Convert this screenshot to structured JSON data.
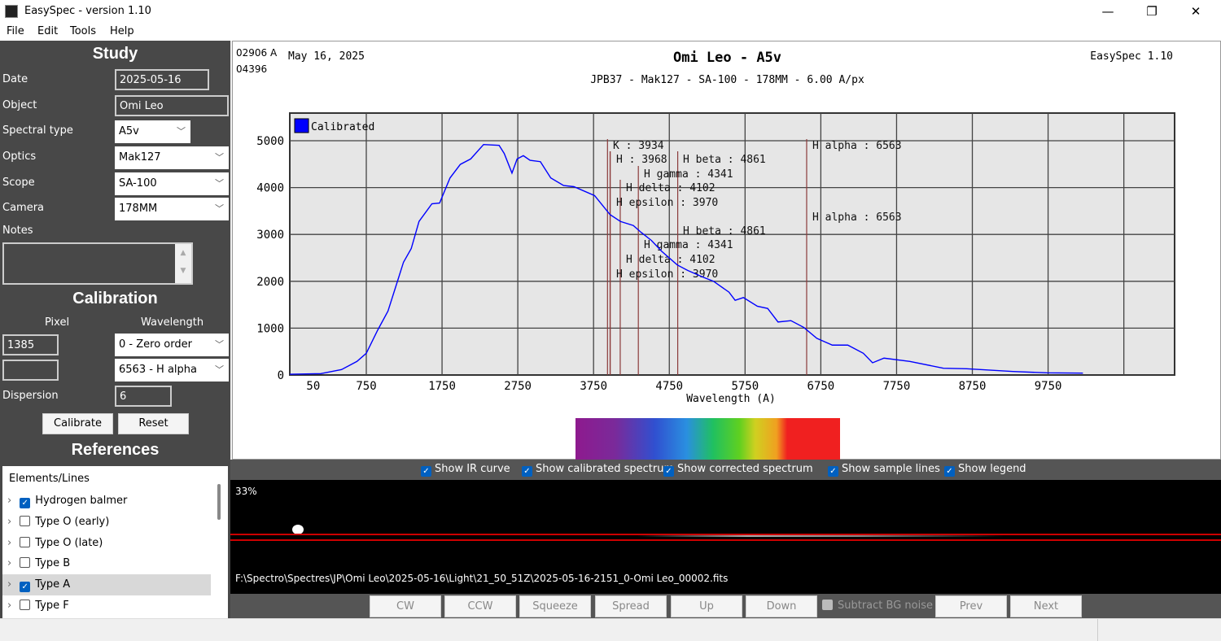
{
  "window": {
    "title": "EasySpec - version 1.10",
    "minimize": "—",
    "maximize": "❐",
    "close": "✕"
  },
  "menu": [
    "File",
    "Edit",
    "Tools",
    "Help"
  ],
  "study": {
    "title": "Study",
    "date_label": "Date",
    "date": "2025-05-16",
    "object_label": "Object",
    "object": "Omi Leo",
    "spectral_type_label": "Spectral type",
    "spectral_type": "A5v",
    "optics_label": "Optics",
    "optics": "Mak127",
    "scope_label": "Scope",
    "scope": "SA-100",
    "camera_label": "Camera",
    "camera": "178MM",
    "notes_label": "Notes",
    "notes": ""
  },
  "calibration": {
    "title": "Calibration",
    "pixel_label": "Pixel",
    "wavelength_label": "Wavelength",
    "pixel1": "1385",
    "wavelength1": "0 - Zero order",
    "pixel2": "",
    "wavelength2": "6563 - H alpha",
    "dispersion_label": "Dispersion",
    "dispersion": "6",
    "calibrate": "Calibrate",
    "reset": "Reset"
  },
  "references": {
    "title": "References",
    "header": "Elements/Lines",
    "items": [
      {
        "label": "Hydrogen balmer",
        "checked": true
      },
      {
        "label": "Type O (early)",
        "checked": false
      },
      {
        "label": "Type O (late)",
        "checked": false
      },
      {
        "label": "Type B",
        "checked": false
      },
      {
        "label": "Type A",
        "checked": true,
        "selected": true
      },
      {
        "label": "Type F",
        "checked": false
      }
    ]
  },
  "chart_header": {
    "cursor_wavelength": "02906 A",
    "cursor_value": "04396",
    "date": "May 16, 2025",
    "title": "Omi Leo - A5v",
    "subtitle": "JPB37 - Mak127 - SA-100 - 178MM - 6.00 A/px",
    "app": "EasySpec 1.10"
  },
  "chart_data": {
    "type": "line",
    "xlabel": "Wavelength (A)",
    "ylabel": "",
    "xlim": [
      -260,
      11420
    ],
    "ylim": [
      0,
      5590
    ],
    "xticks": [
      50,
      750,
      1750,
      2750,
      3750,
      4750,
      5750,
      6750,
      7750,
      8750,
      9750
    ],
    "xgrid": [
      750,
      1750,
      2750,
      3750,
      4750,
      5750,
      6750,
      7750,
      8750,
      9750,
      10750
    ],
    "yticks": [
      0,
      1000,
      2000,
      3000,
      4000,
      5000
    ],
    "grid": true,
    "legend_position": "top-left",
    "series": [
      {
        "name": "Calibrated",
        "color": "#0000ff",
        "x": [
          -259,
          150,
          423,
          627,
          750,
          900,
          1036,
          1173,
          1241,
          1343,
          1446,
          1616,
          1718,
          1855,
          1991,
          2128,
          2298,
          2503,
          2571,
          2673,
          2741,
          2823,
          2912,
          3048,
          3185,
          3355,
          3491,
          3764,
          3968,
          4105,
          4275,
          4377,
          4514,
          4650,
          4855,
          4991,
          5196,
          5332,
          5537,
          5619,
          5728,
          5912,
          6048,
          6185,
          6355,
          6526,
          6697,
          6901,
          7106,
          7311,
          7433,
          7584,
          7925,
          8368,
          8675,
          9289,
          9732,
          10210
        ],
        "y": [
          17,
          29,
          116,
          290,
          464,
          957,
          1363,
          2059,
          2407,
          2697,
          3277,
          3654,
          3671,
          4205,
          4495,
          4611,
          4918,
          4901,
          4727,
          4309,
          4611,
          4681,
          4582,
          4553,
          4205,
          4043,
          4019,
          3828,
          3422,
          3277,
          3190,
          3045,
          2871,
          2639,
          2349,
          2233,
          2088,
          2001,
          1769,
          1595,
          1653,
          1467,
          1421,
          1131,
          1160,
          1015,
          783,
          638,
          638,
          464,
          261,
          360,
          290,
          145,
          133,
          75,
          46,
          41
        ]
      }
    ],
    "lines": [
      {
        "label": "K : 3934",
        "wavelength": 3934
      },
      {
        "label": "H : 3968",
        "wavelength": 3968
      },
      {
        "label": "H beta : 4861",
        "wavelength": 4861
      },
      {
        "label": "H gamma : 4341",
        "wavelength": 4341
      },
      {
        "label": "H delta : 4102",
        "wavelength": 4102
      },
      {
        "label": "H epsilon : 3970",
        "wavelength": 3970
      },
      {
        "label": "H alpha : 6563",
        "wavelength": 6563
      },
      {
        "label": "H beta : 4861",
        "wavelength": 4861
      },
      {
        "label": "H gamma : 4341",
        "wavelength": 4341
      },
      {
        "label": "H delta : 4102",
        "wavelength": 4102
      },
      {
        "label": "H epsilon : 3970",
        "wavelength": 3970
      },
      {
        "label": "H alpha : 6563",
        "wavelength": 6563
      }
    ],
    "line_color": "#8b3a3a"
  },
  "options": [
    {
      "label": "Show IR curve",
      "checked": true
    },
    {
      "label": "Show calibrated spectrum",
      "checked": true
    },
    {
      "label": "Show corrected spectrum",
      "checked": true
    },
    {
      "label": "Show sample lines",
      "checked": true
    },
    {
      "label": "Show legend",
      "checked": true
    }
  ],
  "camera_view": {
    "zoom": "33%",
    "file_path": "F:\\Spectro\\Spectres\\JP\\Omi Leo\\2025-05-16\\Light\\21_50_51Z\\2025-05-16-2151_0-Omi Leo_00002.fits"
  },
  "image_buttons": {
    "cw": "CW",
    "ccw": "CCW",
    "squeeze": "Squeeze",
    "spread": "Spread",
    "up": "Up",
    "down": "Down",
    "subtract": "Subtract BG noise",
    "prev": "Prev",
    "next": "Next"
  }
}
